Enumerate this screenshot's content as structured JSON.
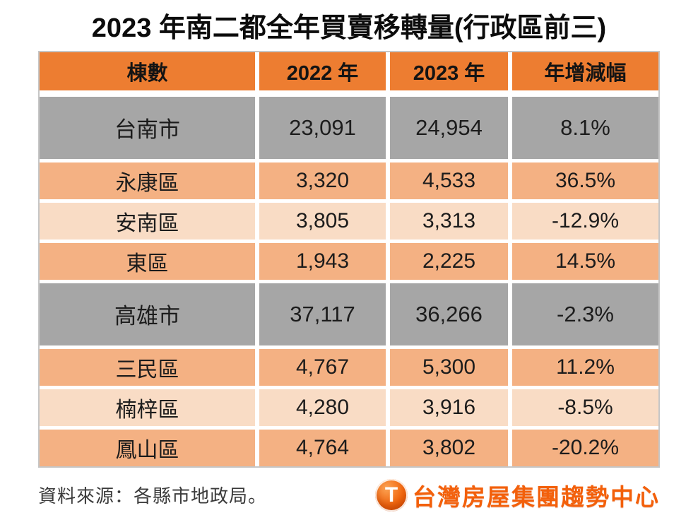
{
  "title": "2023 年南二都全年買賣移轉量(行政區前三)",
  "table": {
    "headers": [
      "棟數",
      "2022 年",
      "2023 年",
      "年增減幅"
    ],
    "rows": [
      {
        "name": "台南市",
        "y2022": "23,091",
        "y2023": "24,954",
        "change": "8.1%"
      },
      {
        "name": "永康區",
        "y2022": "3,320",
        "y2023": "4,533",
        "change": "36.5%"
      },
      {
        "name": "安南區",
        "y2022": "3,805",
        "y2023": "3,313",
        "change": "-12.9%"
      },
      {
        "name": "東區",
        "y2022": "1,943",
        "y2023": "2,225",
        "change": "14.5%"
      },
      {
        "name": "高雄市",
        "y2022": "37,117",
        "y2023": "36,266",
        "change": "-2.3%"
      },
      {
        "name": "三民區",
        "y2022": "4,767",
        "y2023": "5,300",
        "change": "11.2%"
      },
      {
        "name": "楠梓區",
        "y2022": "4,280",
        "y2023": "3,916",
        "change": "-8.5%"
      },
      {
        "name": "鳳山區",
        "y2022": "4,764",
        "y2023": "3,802",
        "change": "-20.2%"
      }
    ]
  },
  "footer": {
    "source": "資料來源：各縣市地政局。",
    "logo_icon": "T",
    "logo_text": "台灣房屋集團趨勢中心"
  },
  "colors": {
    "header_bg": "#ED7D31",
    "city_row_bg": "#A6A6A6",
    "district_row_bg": "#F4B183",
    "district_row_alt_bg": "#F9DCC5",
    "logo_orange": "#F3600B",
    "border": "#C6C6C6"
  },
  "chart_data": {
    "type": "table",
    "title": "2023 年南二都全年買賣移轉量(行政區前三)",
    "columns": [
      "棟數",
      "2022 年",
      "2023 年",
      "年增減幅"
    ],
    "rows": [
      [
        "台南市",
        23091,
        24954,
        "8.1%"
      ],
      [
        "永康區",
        3320,
        4533,
        "36.5%"
      ],
      [
        "安南區",
        3805,
        3313,
        "-12.9%"
      ],
      [
        "東區",
        1943,
        2225,
        "14.5%"
      ],
      [
        "高雄市",
        37117,
        36266,
        "-2.3%"
      ],
      [
        "三民區",
        4767,
        5300,
        "11.2%"
      ],
      [
        "楠梓區",
        4280,
        3916,
        "-8.5%"
      ],
      [
        "鳳山區",
        4764,
        3802,
        "-20.2%"
      ]
    ]
  }
}
